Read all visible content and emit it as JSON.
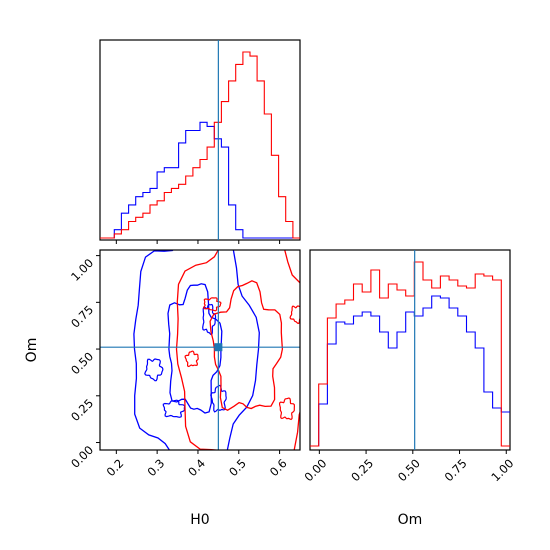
{
  "chart_data": [
    {
      "type": "histogram",
      "panel": "H0-marginal",
      "step": "bins",
      "x_range": [
        0.16,
        0.65
      ],
      "truth": 0.45,
      "series": [
        {
          "color": "#0000ff",
          "values": [
            0,
            0,
            2,
            6,
            8,
            10,
            11,
            12,
            16,
            17,
            17,
            23,
            26,
            26,
            28,
            27,
            24,
            22,
            8,
            2,
            0,
            0,
            0,
            0,
            0,
            0,
            0,
            0
          ]
        },
        {
          "color": "#ff0000",
          "values": [
            0,
            0,
            1,
            2,
            4,
            5,
            6,
            8,
            9,
            11,
            12,
            13,
            15,
            17,
            19,
            22,
            28,
            33,
            38,
            42,
            45,
            44,
            38,
            30,
            20,
            10,
            4,
            0
          ]
        }
      ]
    },
    {
      "type": "contour",
      "panel": "H0-Om-joint",
      "xlabel": "H0",
      "ylabel": "Om",
      "x_range": [
        0.16,
        0.65
      ],
      "y_range": [
        -0.04,
        1.03
      ],
      "x_ticks": [
        "0.2",
        "0.3",
        "0.4",
        "0.5",
        "0.6"
      ],
      "y_ticks": [
        "0.00",
        "0.25",
        "0.50",
        "0.75",
        "1.00"
      ],
      "truth": {
        "H0": 0.45,
        "Om": 0.51
      },
      "series": [
        {
          "color": "#0000ff",
          "levels": 2,
          "center": {
            "H0": 0.39,
            "Om": 0.5
          }
        },
        {
          "color": "#ff0000",
          "levels": 2,
          "center": {
            "H0": 0.52,
            "Om": 0.5
          }
        }
      ]
    },
    {
      "type": "histogram",
      "panel": "Om-marginal",
      "step": "bins",
      "xlabel": "Om",
      "x_range": [
        -0.05,
        1.02
      ],
      "x_ticks": [
        "0.00",
        "0.25",
        "0.50",
        "0.75",
        "1.00"
      ],
      "truth": 0.51,
      "series": [
        {
          "color": "#0000ff",
          "values": [
            1,
            22,
            52,
            63,
            62,
            66,
            68,
            66,
            58,
            50,
            58,
            68,
            66,
            70,
            76,
            75,
            70,
            66,
            58,
            50,
            28,
            20,
            18
          ]
        },
        {
          "color": "#ff0000",
          "values": [
            1,
            32,
            65,
            72,
            74,
            82,
            78,
            89,
            75,
            82,
            79,
            76,
            93,
            84,
            80,
            86,
            84,
            81,
            80,
            87,
            86,
            84,
            1
          ]
        }
      ]
    }
  ]
}
